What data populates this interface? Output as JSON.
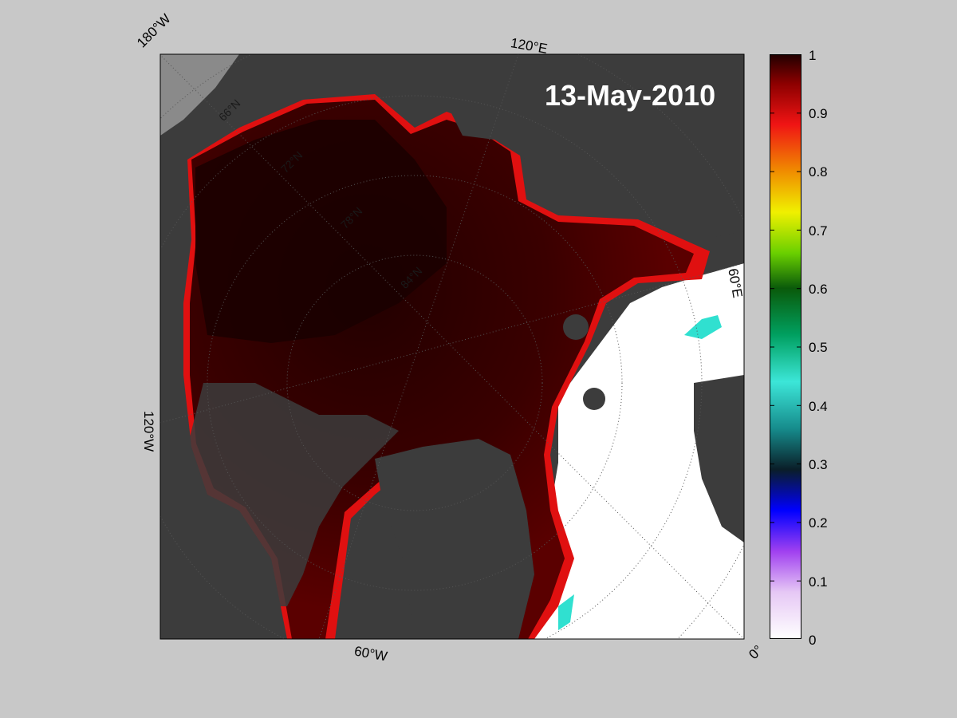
{
  "map": {
    "date": "13-May-2010",
    "longitude_labels": [
      "180°W",
      "120°E",
      "60°E",
      "0°",
      "60°W",
      "120°W"
    ],
    "latitude_labels": [
      "66°N",
      "72°N",
      "78°N",
      "84°N"
    ],
    "ocean_color": "#ffffff",
    "land_color": "#3a3a3a",
    "ice_max_color": "#200000"
  },
  "colorbar": {
    "min": 0,
    "max": 1,
    "ticks": [
      "1",
      "0.9",
      "0.8",
      "0.7",
      "0.6",
      "0.5",
      "0.4",
      "0.3",
      "0.2",
      "0.1",
      "0"
    ],
    "colormap": [
      "#ffffff",
      "#d7a6f0",
      "#9a3cf0",
      "#0000ff",
      "#0a2a3a",
      "#1aa8a8",
      "#30f0d8",
      "#008a30",
      "#7ad800",
      "#f0f000",
      "#f08a00",
      "#f01010",
      "#200000"
    ]
  }
}
